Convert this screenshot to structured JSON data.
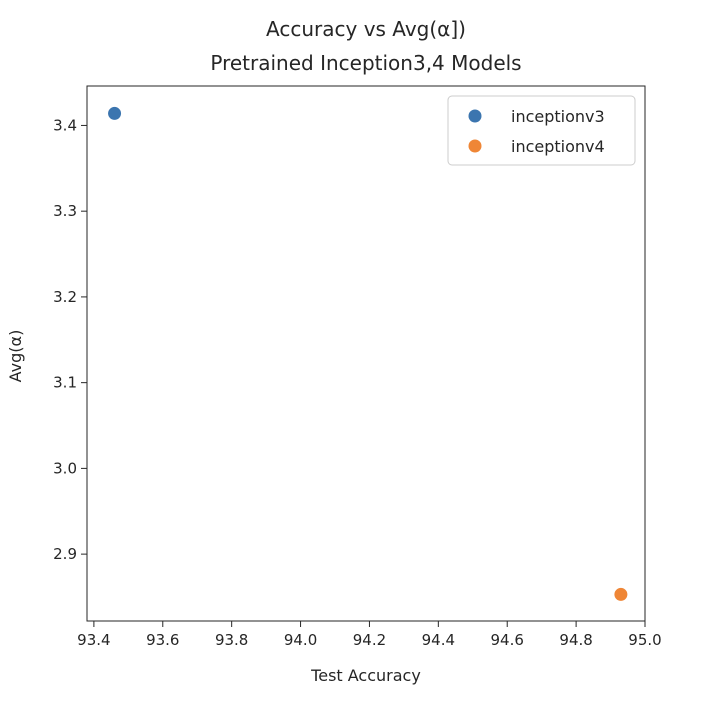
{
  "chart_data": {
    "type": "scatter",
    "title_line1": "Accuracy vs Avg(α])",
    "title_line2": "Pretrained Inception3,4 Models",
    "xlabel": "Test Accuracy",
    "ylabel": "Avg(α)",
    "xlim": [
      93.38,
      95.0
    ],
    "ylim": [
      2.822,
      3.446
    ],
    "xticks": [
      93.4,
      93.6,
      93.8,
      94.0,
      94.2,
      94.4,
      94.6,
      94.8,
      95.0
    ],
    "xtick_labels": [
      "93.4",
      "93.6",
      "93.8",
      "94.0",
      "94.2",
      "94.4",
      "94.6",
      "94.8",
      "95.0"
    ],
    "yticks": [
      2.9,
      3.0,
      3.1,
      3.2,
      3.3,
      3.4
    ],
    "ytick_labels": [
      "2.9",
      "3.0",
      "3.1",
      "3.2",
      "3.3",
      "3.4"
    ],
    "grid": false,
    "legend_position": "top-right",
    "series": [
      {
        "name": "inceptionv3",
        "color": "#3b75af",
        "points": [
          [
            93.46,
            3.414
          ]
        ]
      },
      {
        "name": "inceptionv4",
        "color": "#ef8636",
        "points": [
          [
            94.93,
            2.853
          ]
        ]
      }
    ]
  }
}
